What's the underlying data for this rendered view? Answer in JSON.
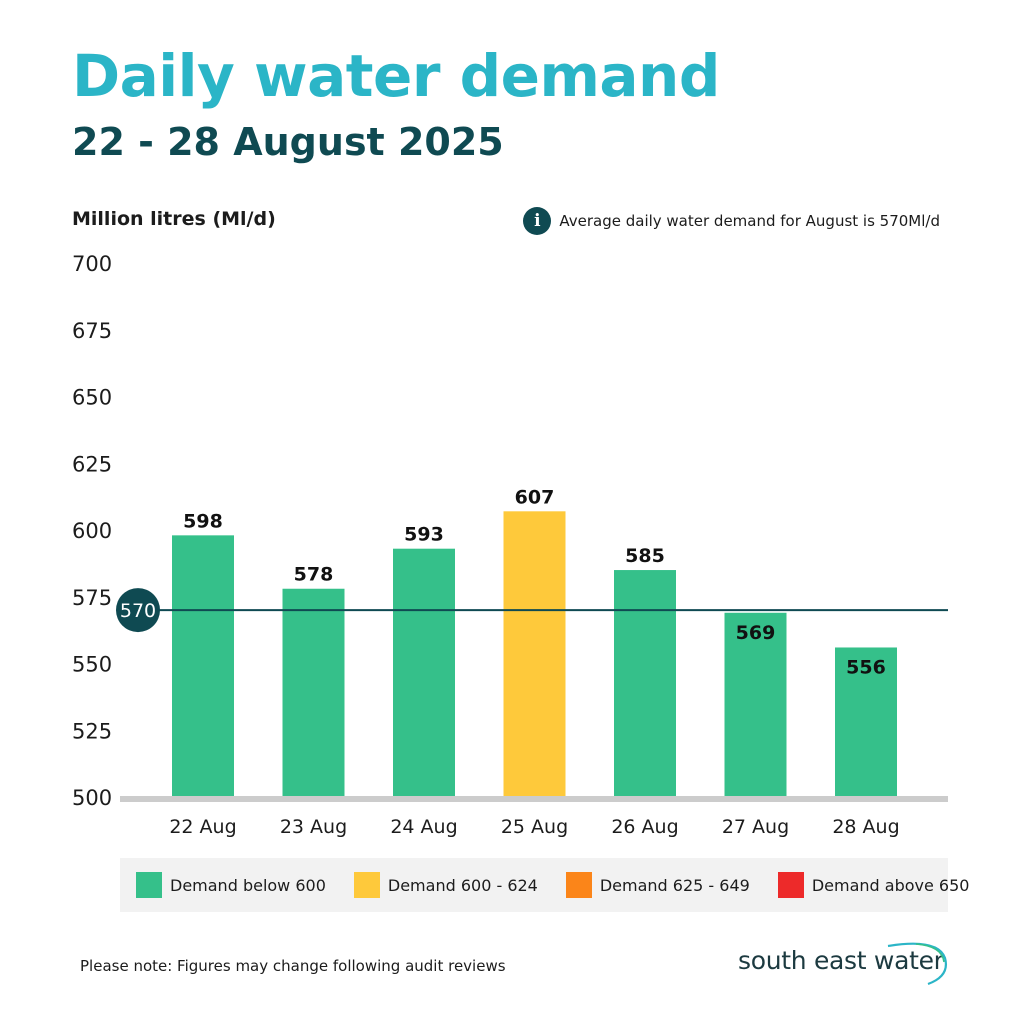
{
  "header": {
    "title": "Daily water demand",
    "subtitle": "22 - 28 August 2025"
  },
  "average_note": {
    "icon": "info-icon",
    "icon_glyph": "i",
    "text": "Average daily water demand for August is 570Ml/d"
  },
  "chart_data": {
    "type": "bar",
    "title": "Daily water demand",
    "ylabel": "Million litres (Ml/d)",
    "xlabel": "",
    "ylim": [
      500,
      700
    ],
    "yticks": [
      500,
      525,
      550,
      575,
      600,
      625,
      650,
      675,
      700
    ],
    "categories": [
      "22 Aug",
      "23 Aug",
      "24 Aug",
      "25 Aug",
      "26 Aug",
      "27 Aug",
      "28 Aug"
    ],
    "values": [
      598,
      578,
      593,
      607,
      585,
      569,
      556
    ],
    "value_labels": [
      "598",
      "578",
      "593",
      "607",
      "585",
      "569",
      "556"
    ],
    "reference_line": {
      "value": 570,
      "label": "570",
      "color": "#0f4a52"
    },
    "grid": false,
    "legend_position": "bottom",
    "bar_colors": [
      "#35c08a",
      "#35c08a",
      "#35c08a",
      "#fec93b",
      "#35c08a",
      "#35c08a",
      "#35c08a"
    ]
  },
  "legend": {
    "items": [
      {
        "label": "Demand below 600",
        "color": "#35c08a"
      },
      {
        "label": "Demand 600 - 624",
        "color": "#fec93b"
      },
      {
        "label": "Demand 625 - 649",
        "color": "#fb8519"
      },
      {
        "label": "Demand above 650",
        "color": "#ed2a2a"
      }
    ]
  },
  "footer": {
    "note": "Please note: Figures may change following audit reviews",
    "logo_text": "south east water"
  },
  "colors": {
    "title": "#2bb5c7",
    "subtitle": "#0f4a52",
    "axis": "#cccccc",
    "label": "#1c1c1c"
  }
}
